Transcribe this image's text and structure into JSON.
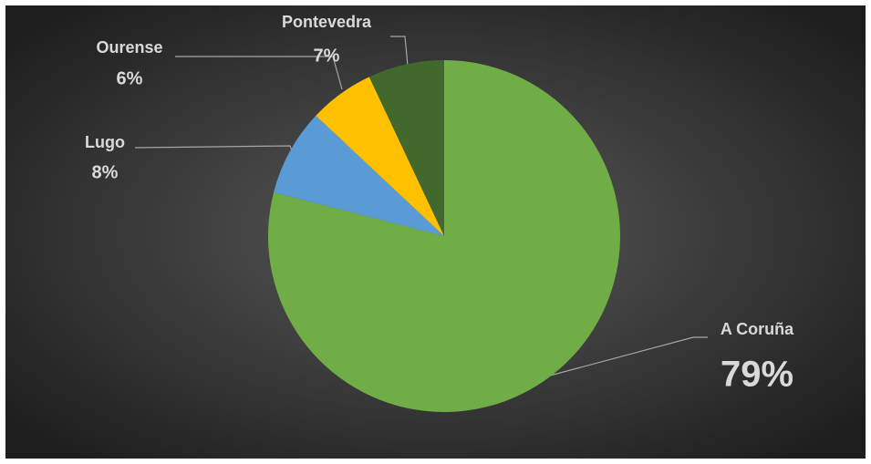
{
  "chart_data": {
    "type": "pie",
    "categories": [
      "A Coruña",
      "Lugo",
      "Ourense",
      "Pontevedra"
    ],
    "values": [
      79,
      8,
      6,
      7
    ],
    "value_labels": [
      "79%",
      "8%",
      "6%",
      "7%"
    ],
    "colors": [
      "#70ad47",
      "#5b9bd5",
      "#ffc000",
      "#43682b"
    ]
  }
}
